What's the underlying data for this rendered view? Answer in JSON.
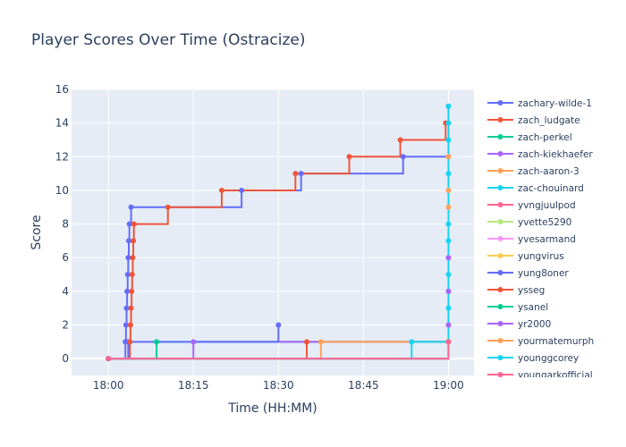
{
  "chart_data": {
    "type": "line",
    "title": "Player Scores Over Time (Ostracize)",
    "xlabel": "Time (HH:MM)",
    "ylabel": "Score",
    "x_unit": "minutes after 18:00",
    "xlim": [
      -6.5,
      64.5
    ],
    "ylim": [
      -1,
      16
    ],
    "x_ticks": [
      {
        "v": 0,
        "label": "18:00"
      },
      {
        "v": 15,
        "label": "18:15"
      },
      {
        "v": 30,
        "label": "18:30"
      },
      {
        "v": 45,
        "label": "18:45"
      },
      {
        "v": 60,
        "label": "19:00"
      }
    ],
    "y_ticks": [
      0,
      2,
      4,
      6,
      8,
      10,
      12,
      14,
      16
    ],
    "grid": true,
    "legend_position": "right",
    "line_shape": "step",
    "series": [
      {
        "name": "zachary-wilde-1",
        "color": "#636efa",
        "points": [
          [
            0,
            0
          ],
          [
            3.0,
            1
          ],
          [
            3.1,
            2
          ],
          [
            3.2,
            3
          ],
          [
            3.3,
            4
          ],
          [
            3.4,
            5
          ],
          [
            3.5,
            6
          ],
          [
            3.6,
            7
          ],
          [
            3.7,
            8
          ],
          [
            4.0,
            9
          ],
          [
            23.5,
            10
          ],
          [
            34.0,
            11
          ],
          [
            52.0,
            12
          ],
          [
            60.0,
            15
          ]
        ]
      },
      {
        "name": "zach_ludgate",
        "color": "#EF553B",
        "points": [
          [
            0,
            0
          ],
          [
            35.0,
            1
          ],
          [
            60.0,
            1
          ]
        ]
      },
      {
        "name": "zach-perkel",
        "color": "#00cc96",
        "points": [
          [
            0,
            0
          ],
          [
            8.5,
            1
          ],
          [
            60.0,
            1
          ]
        ]
      },
      {
        "name": "zach-kiekhaefer",
        "color": "#ab63fa",
        "points": [
          [
            0,
            0
          ],
          [
            15.0,
            1
          ],
          [
            60.0,
            1
          ]
        ]
      },
      {
        "name": "zach-aaron-3",
        "color": "#FFA15A",
        "points": [
          [
            0,
            0
          ],
          [
            37.5,
            1
          ],
          [
            60.0,
            1
          ]
        ]
      },
      {
        "name": "zac-chouinard",
        "color": "#19d3f3",
        "points": [
          [
            0,
            0
          ],
          [
            53.5,
            1
          ],
          [
            60.0,
            1
          ]
        ]
      },
      {
        "name": "yvngjuulpod",
        "color": "#FF6692",
        "points": [
          [
            0,
            0
          ],
          [
            60.0,
            1
          ]
        ]
      },
      {
        "name": "yvette5290",
        "color": "#B6E880",
        "points": [
          [
            0,
            0
          ],
          [
            60.0,
            1
          ]
        ]
      },
      {
        "name": "yvesarmand",
        "color": "#FF97FF",
        "points": [
          [
            0,
            0
          ],
          [
            60.0,
            1
          ]
        ]
      },
      {
        "name": "yungvirus",
        "color": "#FECB52",
        "points": [
          [
            0,
            0
          ],
          [
            60.0,
            1
          ]
        ]
      },
      {
        "name": "yung8oner",
        "color": "#636efa",
        "points": [
          [
            0,
            0
          ],
          [
            3.5,
            1
          ],
          [
            30.0,
            2
          ]
        ]
      },
      {
        "name": "ysseg",
        "color": "#EF553B",
        "points": [
          [
            0,
            0
          ],
          [
            3.8,
            1
          ],
          [
            3.9,
            2
          ],
          [
            4.0,
            3
          ],
          [
            4.1,
            4
          ],
          [
            4.2,
            5
          ],
          [
            4.3,
            6
          ],
          [
            4.4,
            7
          ],
          [
            4.5,
            8
          ],
          [
            10.5,
            9
          ],
          [
            20.0,
            10
          ],
          [
            33.0,
            11
          ],
          [
            42.5,
            12
          ],
          [
            51.5,
            13
          ],
          [
            59.5,
            14
          ]
        ]
      },
      {
        "name": "ysanel",
        "color": "#00cc96",
        "points": [
          [
            0,
            0
          ],
          [
            60.0,
            1
          ]
        ]
      },
      {
        "name": "yr2000",
        "color": "#ab63fa",
        "points": [
          [
            0,
            0
          ],
          [
            60.0,
            1
          ],
          [
            60.0,
            2
          ],
          [
            60.0,
            4
          ],
          [
            60.0,
            6
          ]
        ]
      },
      {
        "name": "yourmatemurph",
        "color": "#FFA15A",
        "points": [
          [
            0,
            0
          ],
          [
            60.0,
            1
          ],
          [
            60.0,
            9
          ],
          [
            60.0,
            10
          ],
          [
            60.0,
            12
          ]
        ]
      },
      {
        "name": "younggcorey",
        "color": "#19d3f3",
        "points": [
          [
            0,
            0
          ],
          [
            60.0,
            1
          ],
          [
            60.0,
            3
          ],
          [
            60.0,
            5
          ],
          [
            60.0,
            7
          ],
          [
            60.0,
            8
          ],
          [
            60.0,
            11
          ],
          [
            60.0,
            13
          ],
          [
            60.0,
            14
          ],
          [
            60.0,
            15
          ]
        ]
      },
      {
        "name": "youngarkofficial",
        "color": "#FF6692",
        "points": [
          [
            0,
            0
          ],
          [
            60.0,
            1
          ]
        ]
      }
    ]
  }
}
